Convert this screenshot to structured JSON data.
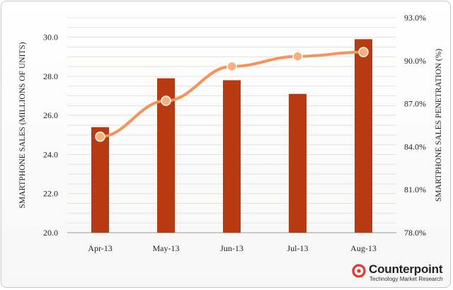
{
  "chart_data": {
    "type": "bar+line",
    "categories": [
      "Apr-13",
      "May-13",
      "Jun-13",
      "Jul-13",
      "Aug-13"
    ],
    "series": [
      {
        "type": "bar",
        "axis": "left",
        "color": "#b83a10",
        "values": [
          25.4,
          27.9,
          27.8,
          27.1,
          29.9
        ]
      },
      {
        "type": "line",
        "axis": "right",
        "color": "#f7935a",
        "values": [
          84.7,
          87.2,
          89.6,
          90.3,
          90.6
        ]
      }
    ],
    "ylabel_left": "SMARTPHONE SALES (MILLIONS OF UNITS)",
    "ylabel_right": "SMARTPHONE SALES PENETRATION (%)",
    "ylim_left": [
      20,
      31
    ],
    "ylim_right": [
      78,
      93
    ],
    "yticks_left": [
      "20.0",
      "22.0",
      "24.0",
      "26.0",
      "28.0",
      "30.0"
    ],
    "yticks_right": [
      "78.0%",
      "81.0%",
      "84.0%",
      "87.0%",
      "90.0%",
      "93.0%"
    ],
    "grid": true,
    "legend": "none"
  },
  "branding": {
    "name": "Counterpoint",
    "tagline": "Technology Market Research",
    "color": "#e5372b"
  }
}
